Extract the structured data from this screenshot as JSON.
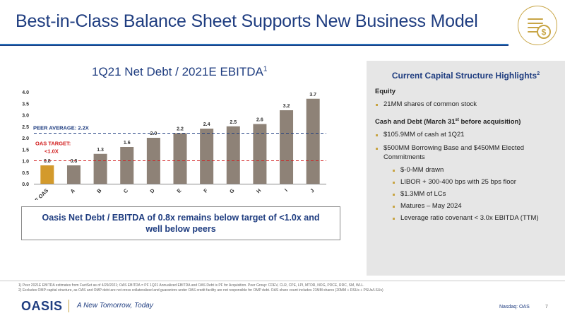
{
  "slide": {
    "title": "Best-in-Class Balance Sheet Supports New Business Model",
    "icon": "dollar-coin-stack-icon",
    "accent_color": "#c8a545",
    "title_color": "#1f3d80"
  },
  "chart_title": {
    "text": "1Q21 Net Debt / 2021E EBITDA",
    "sup": "1"
  },
  "chart_data": {
    "type": "bar",
    "categories": [
      "PF OAS",
      "A",
      "B",
      "C",
      "D",
      "E",
      "F",
      "G",
      "H",
      "I",
      "J"
    ],
    "values": [
      0.8,
      0.8,
      1.3,
      1.6,
      2.0,
      2.2,
      2.4,
      2.5,
      2.6,
      3.2,
      3.7
    ],
    "value_labels": [
      "0.8",
      "0.8",
      "1.3",
      "1.6",
      "2.0",
      "2.2",
      "2.4",
      "2.5",
      "2.6",
      "3.2",
      "3.7"
    ],
    "highlight_index": 0,
    "colors": {
      "highlight": "#d39a2c",
      "bar": "#8e8277"
    },
    "ylim": [
      0,
      4.0
    ],
    "yticks": [
      "0.0",
      "0.5",
      "1.0",
      "1.5",
      "2.0",
      "2.5",
      "3.0",
      "3.5",
      "4.0"
    ],
    "reference_lines": [
      {
        "label": "PEER AVERAGE: 2.2X",
        "value": 2.2,
        "color": "#1f3d80"
      },
      {
        "label": "OAS TARGET:\n<1.0X",
        "value": 1.0,
        "color": "#d21f1f"
      }
    ],
    "grid": false
  },
  "callout": "Oasis Net Debt / EBITDA of 0.8x remains below target of <1.0x and well below peers",
  "panel": {
    "title": "Current Capital Structure Highlights",
    "title_sup": "2",
    "equity_head": "Equity",
    "equity_items": [
      "21MM shares of common stock"
    ],
    "cash_head_pre": "Cash and Debt (March 31",
    "cash_head_sup": "st",
    "cash_head_post": " before acquisition)",
    "cash_items": [
      "$105.9MM of cash at 1Q21",
      "$500MM Borrowing Base and $450MM Elected Commitments"
    ],
    "sub_items": [
      "$-0-MM drawn",
      "LIBOR + 300-400 bps with 25 bps floor",
      "$1.3MM of LCs",
      "Matures – May 2024",
      "Leverage ratio covenant < 3.0x EBITDA (TTM)"
    ]
  },
  "footnotes": [
    "1)   Peer 2021E EBITDA estimates from FactSet as of 4/29/2021; OAS EBITDA = PF 1Q21 Annualized EBITDA and OAS Debt is PF for Acquisition. Peer Group: CDEV, CLR, CPE, LPI, MTDR, NOG, PDCE, RRC, SM, WLL.",
    "2)   Excludes OMP capital structure, as OAS and OMP debt are not cross collateralized and guarantors under OAS credit facility are not responsible for OMP debt. OAS share count includes 21MM shares (20MM + RSUs + PSUs/LSUs)"
  ],
  "footer": {
    "logo_text": "OASIS",
    "tagline": "A New Tomorrow, Today",
    "ticker": "Nasdaq: OAS",
    "page": "7"
  }
}
